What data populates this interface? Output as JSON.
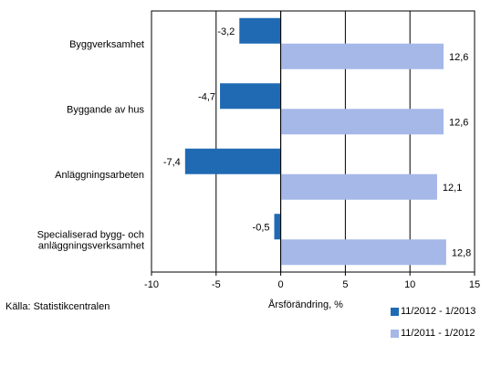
{
  "chart_data": {
    "type": "bar",
    "orientation": "horizontal",
    "categories": [
      [
        "Byggverksamhet"
      ],
      [
        "Byggande av hus"
      ],
      [
        "Anläggningsarbeten"
      ],
      [
        "Specialiserad bygg- och",
        "anläggningsverksamhet"
      ]
    ],
    "series": [
      {
        "name": "11/2012 - 1/2013",
        "color": "#1f6ab3",
        "values": [
          -3.2,
          -4.7,
          -7.4,
          -0.5
        ],
        "labels": [
          "-3,2",
          "-4,7",
          "-7,4",
          "-0,5"
        ]
      },
      {
        "name": "11/2011 - 1/2012",
        "color": "#a6b8e8",
        "values": [
          12.6,
          12.6,
          12.1,
          12.8
        ],
        "labels": [
          "12,6",
          "12,6",
          "12,1",
          "12,8"
        ]
      }
    ],
    "xlim": [
      -10,
      15
    ],
    "xticks": [
      -10,
      -5,
      0,
      5,
      10,
      15
    ],
    "xlabel": "Årsförändring, %",
    "grid": "vertical",
    "legend": "bottom-right"
  },
  "source": "Källa: Statistikcentralen"
}
